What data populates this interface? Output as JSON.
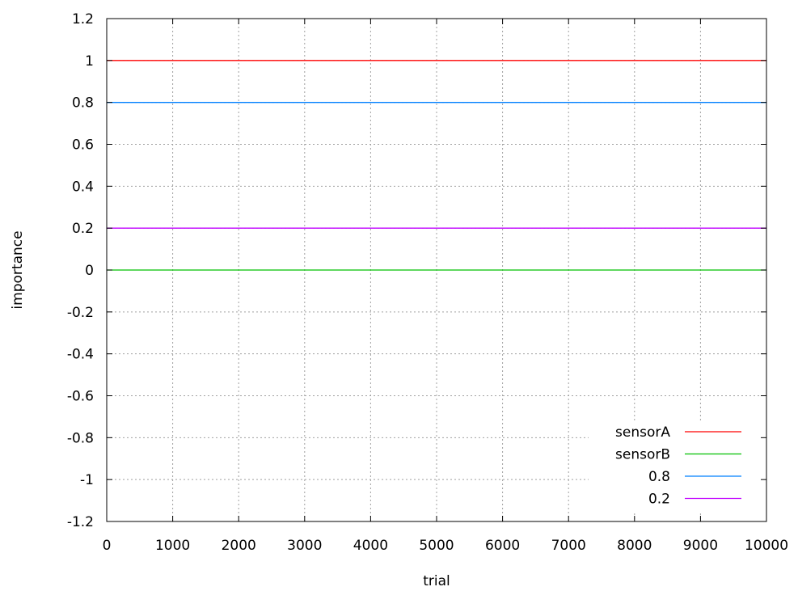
{
  "chart_data": {
    "type": "line",
    "xlabel": "trial",
    "ylabel": "importance",
    "xlim": [
      0,
      10000
    ],
    "ylim": [
      -1.2,
      1.2
    ],
    "x_ticks": [
      0,
      1000,
      2000,
      3000,
      4000,
      5000,
      6000,
      7000,
      8000,
      9000,
      10000
    ],
    "x_tick_labels": [
      "0",
      "1000",
      "2000",
      "3000",
      "4000",
      "5000",
      "6000",
      "7000",
      "8000",
      "9000",
      "10000"
    ],
    "y_ticks": [
      1.2,
      1,
      0.8,
      0.6,
      0.4,
      0.2,
      0,
      -0.2,
      -0.4,
      -0.6,
      -0.8,
      -1,
      -1.2
    ],
    "y_tick_labels": [
      "1.2",
      "1",
      "0.8",
      "0.6",
      "0.4",
      "0.2",
      "0",
      "-0.2",
      "-0.4",
      "-0.6",
      "-0.8",
      "-1",
      "-1.2"
    ],
    "grid": true,
    "legend_position": "bottom-right",
    "series": [
      {
        "name": "sensorA",
        "color": "#ff0000",
        "x": [
          0,
          10000
        ],
        "y": [
          1,
          1
        ]
      },
      {
        "name": "sensorB",
        "color": "#00c000",
        "x": [
          0,
          10000
        ],
        "y": [
          0,
          0
        ]
      },
      {
        "name": "0.8",
        "color": "#0080ff",
        "x": [
          0,
          10000
        ],
        "y": [
          0.8,
          0.8
        ]
      },
      {
        "name": "0.2",
        "color": "#c000ff",
        "x": [
          0,
          10000
        ],
        "y": [
          0.2,
          0.2
        ]
      }
    ]
  }
}
